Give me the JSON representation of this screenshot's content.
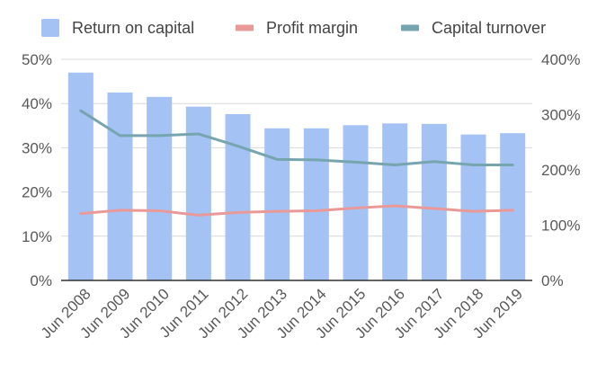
{
  "chart_data": {
    "type": "bar",
    "categories": [
      "Jun 2008",
      "Jun 2009",
      "Jun 2010",
      "Jun 2011",
      "Jun 2012",
      "Jun 2013",
      "Jun 2014",
      "Jun 2015",
      "Jun 2016",
      "Jun 2017",
      "Jun 2018",
      "Jun 2019"
    ],
    "series": [
      {
        "name": "Return on capital",
        "type": "bar",
        "axis": "left",
        "color": "#a4c2f4",
        "values": [
          47.0,
          42.5,
          41.5,
          39.3,
          37.6,
          34.4,
          34.4,
          35.1,
          35.5,
          35.4,
          33.0,
          33.3
        ]
      },
      {
        "name": "Profit margin",
        "type": "line",
        "axis": "right",
        "color": "#ea9999",
        "values": [
          121,
          127,
          126,
          118,
          123,
          125,
          126,
          131,
          135,
          130,
          125,
          127
        ]
      },
      {
        "name": "Capital turnover",
        "type": "line",
        "axis": "right",
        "color": "#76a5af",
        "values": [
          307,
          262,
          262,
          265,
          243,
          219,
          218,
          214,
          209,
          215,
          209,
          209
        ]
      }
    ],
    "left_axis": {
      "ylim": [
        0,
        50
      ],
      "ticks": [
        "0%",
        "10%",
        "20%",
        "30%",
        "40%",
        "50%"
      ]
    },
    "right_axis": {
      "ylim": [
        0,
        400
      ],
      "ticks": [
        "0%",
        "100%",
        "200%",
        "300%",
        "400%"
      ]
    },
    "grid": true,
    "legend_position": "top",
    "title": ""
  }
}
